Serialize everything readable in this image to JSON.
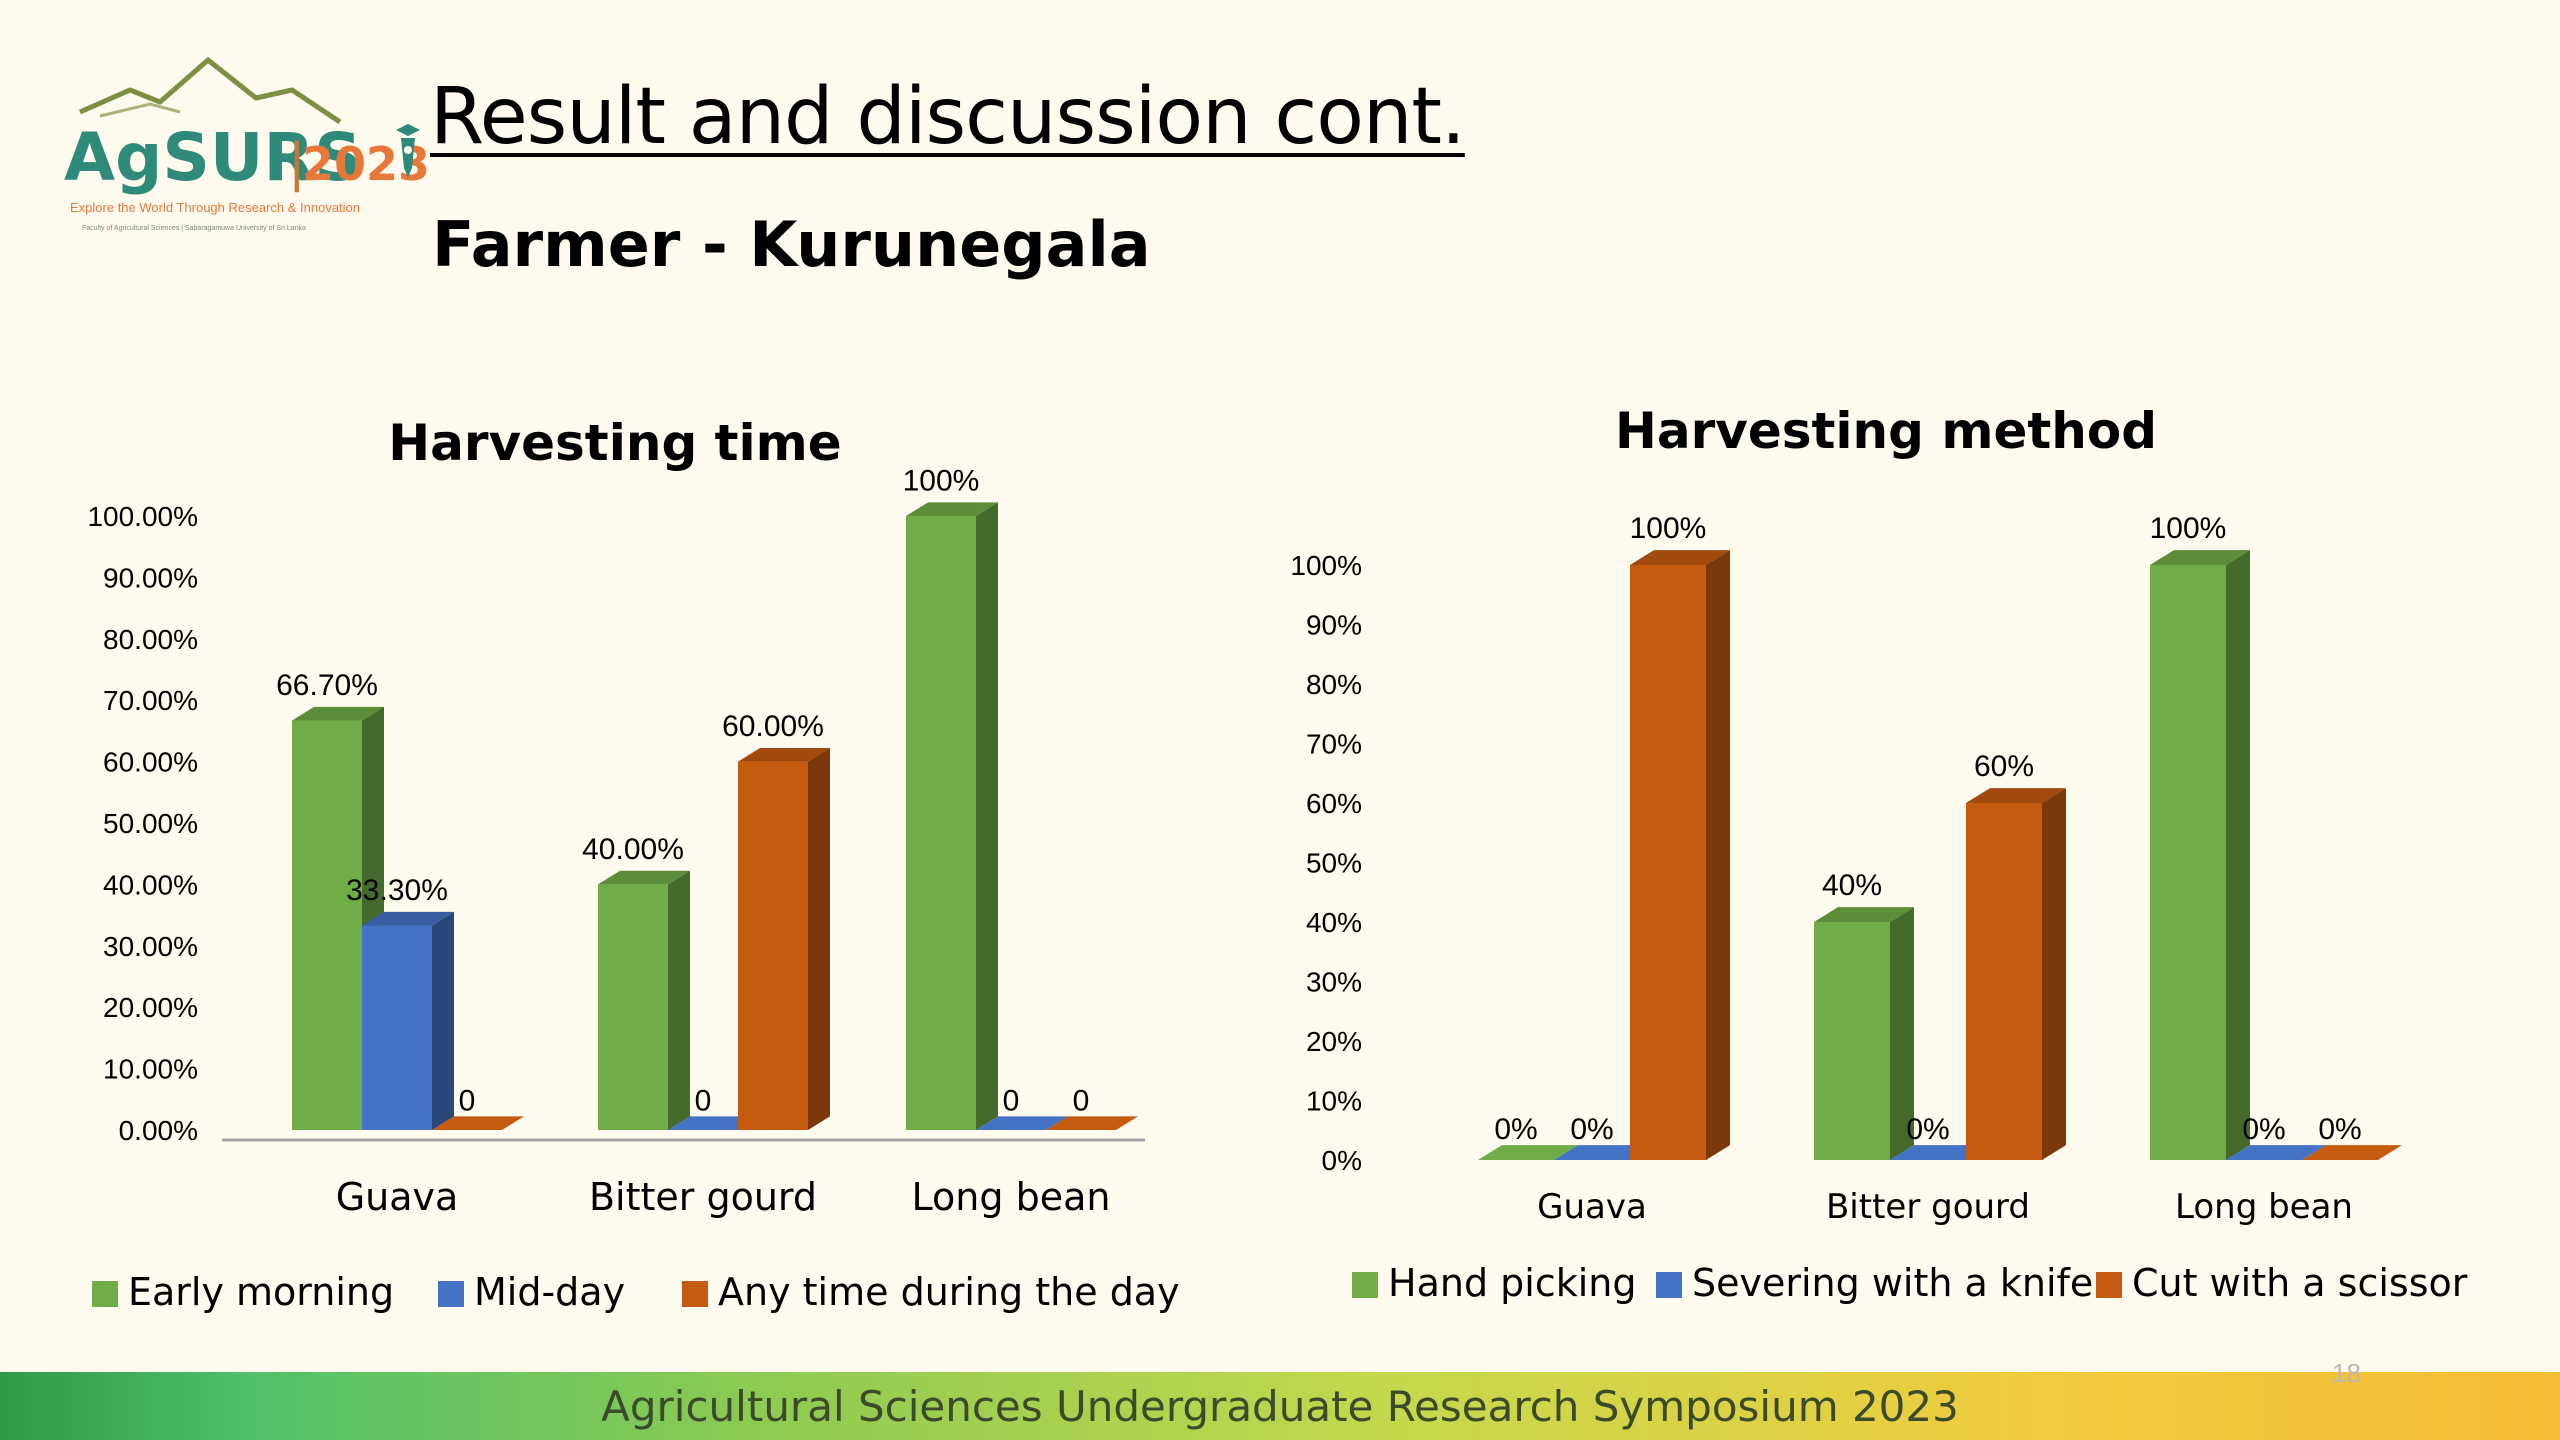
{
  "slide": {
    "title": "Result and discussion cont.",
    "subtitle": "Farmer  - Kurunegala",
    "footer": "Agricultural Sciences Undergraduate Research Symposium 2023",
    "page_number": "18"
  },
  "logo": {
    "name": "AgSURS",
    "year": "2023",
    "tagline": "Explore the World Through Research & Innovation",
    "small_text": "Faculty of Agricultural Sciences | Sabaragamuwa University of Sri Lanka"
  },
  "colors": {
    "green": "#70ad47",
    "blue": "#4472c4",
    "orange": "#c55a11",
    "logo_green": "#2e8b7a",
    "logo_orange": "#e8773a"
  },
  "chart_data": [
    {
      "type": "bar",
      "title": "Harvesting time",
      "categories": [
        "Guava",
        "Bitter gourd",
        "Long bean"
      ],
      "series": [
        {
          "name": "Early morning",
          "values": [
            66.7,
            40.0,
            100.0
          ],
          "labels": [
            "66.70%",
            "40.00%",
            "100%"
          ],
          "color": "#70ad47"
        },
        {
          "name": "Mid-day",
          "values": [
            33.3,
            0,
            0
          ],
          "labels": [
            "33.30%",
            "0",
            "0"
          ],
          "color": "#4472c4"
        },
        {
          "name": "Any time during the day",
          "values": [
            0,
            60.0,
            0
          ],
          "labels": [
            "0",
            "60.00%",
            "0"
          ],
          "color": "#c55a11"
        }
      ],
      "y_ticks": [
        "0.00%",
        "10.00%",
        "20.00%",
        "30.00%",
        "40.00%",
        "50.00%",
        "60.00%",
        "70.00%",
        "80.00%",
        "90.00%",
        "100.00%"
      ],
      "ylim": [
        0,
        100
      ],
      "legend": "bottom"
    },
    {
      "type": "bar",
      "title": "Harvesting method",
      "categories": [
        "Guava",
        "Bitter gourd",
        "Long bean"
      ],
      "series": [
        {
          "name": "Hand picking",
          "values": [
            0,
            40,
            100
          ],
          "labels": [
            "0%",
            "40%",
            "100%"
          ],
          "color": "#70ad47"
        },
        {
          "name": "Severing with a knife",
          "values": [
            0,
            0,
            0
          ],
          "labels": [
            "0%",
            "0%",
            "0%"
          ],
          "color": "#4472c4"
        },
        {
          "name": "Cut with a scissor",
          "values": [
            100,
            60,
            0
          ],
          "labels": [
            "100%",
            "60%",
            "0%"
          ],
          "color": "#c55a11"
        }
      ],
      "y_ticks": [
        "0%",
        "10%",
        "20%",
        "30%",
        "40%",
        "50%",
        "60%",
        "70%",
        "80%",
        "90%",
        "100%"
      ],
      "ylim": [
        0,
        100
      ],
      "legend": "bottom"
    }
  ]
}
